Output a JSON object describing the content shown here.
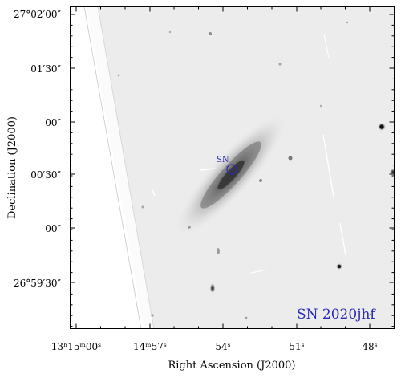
{
  "figure": {
    "y_axis_label": "Declination (J2000)",
    "x_axis_label": "Right Ascension (J2000)",
    "y_ticks": [
      {
        "text": "27°02′00″"
      },
      {
        "text": "01′30″"
      },
      {
        "text": "00″"
      },
      {
        "text": "00′30″"
      },
      {
        "text": "00″"
      },
      {
        "text": "26°59′30″"
      }
    ],
    "x_ticks": [
      {
        "text": "13ʰ15ᵐ00ˢ"
      },
      {
        "text": "14ᵐ57ˢ"
      },
      {
        "text": "54ˢ"
      },
      {
        "text": "51ˢ"
      },
      {
        "text": "48ˢ"
      }
    ],
    "marker_label": "SN",
    "object_name": "SN 2020jhf",
    "colors": {
      "annotation": "#2a2ab8",
      "sky": "#ececec",
      "frame": "#000000"
    }
  }
}
